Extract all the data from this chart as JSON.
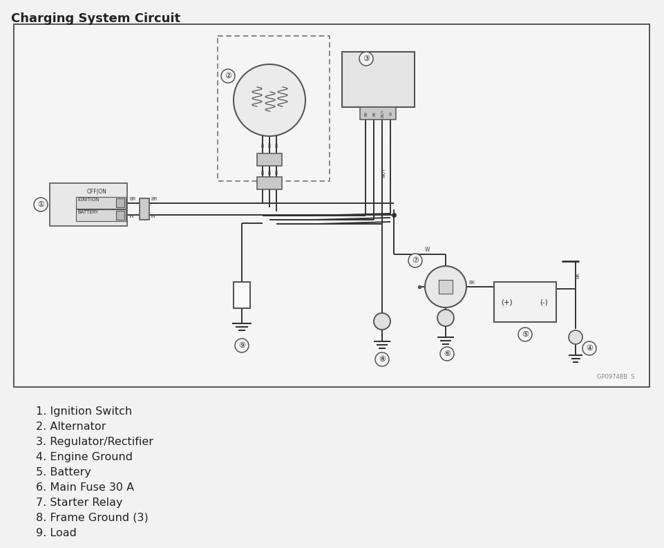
{
  "title": "Charging System Circuit",
  "bg_color": "#f2f2f2",
  "box_bg": "#f5f5f5",
  "border_color": "#555555",
  "wire_color": "#333333",
  "legend_items": [
    "1. Ignition Switch",
    "2. Alternator",
    "3. Regulator/Rectifier",
    "4. Engine Ground",
    "5. Battery",
    "6. Main Fuse 30 A",
    "7. Starter Relay",
    "8. Frame Ground (3)",
    "9. Load"
  ],
  "watermark": "GP09748B  S"
}
